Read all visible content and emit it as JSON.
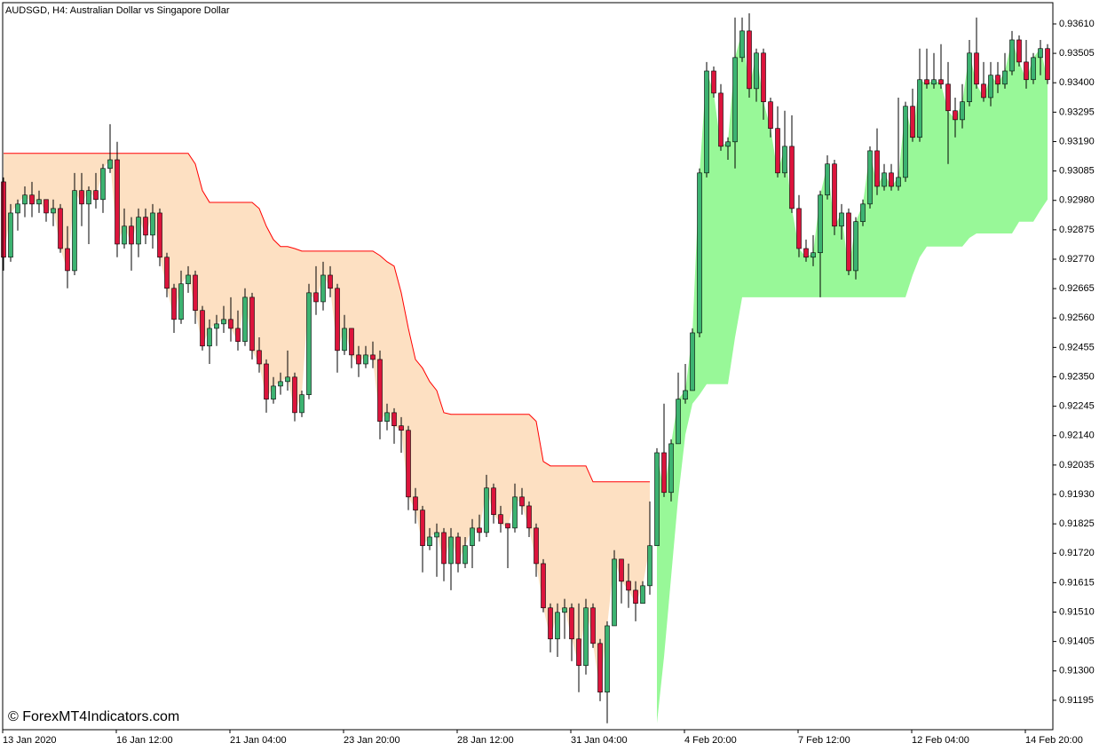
{
  "chart_data": {
    "type": "candlestick",
    "title": "AUDSGD, H4:  Australian Dollar vs Singapore Dollar",
    "watermark": "© ForexMT4Indicators.com",
    "up_color": "#3cb371",
    "down_color": "#dc143c",
    "ylim": [
      0.9109,
      0.93686
    ],
    "yticks": [
      {
        "value": 0.9361,
        "label": "0.93610"
      },
      0.93505,
      {
        "value": 0.934,
        "label": "0.93400"
      },
      0.93295,
      {
        "value": 0.9319,
        "label": "0.93190"
      },
      0.93085,
      {
        "value": 0.9298,
        "label": "0.92980"
      },
      0.92875,
      {
        "value": 0.9277,
        "label": "0.92770"
      },
      0.92665,
      {
        "value": 0.9256,
        "label": "0.92560"
      },
      0.92455,
      {
        "value": 0.9235,
        "label": "0.92350"
      },
      0.92245,
      {
        "value": 0.9214,
        "label": "0.92140"
      },
      0.92035,
      {
        "value": 0.9193,
        "label": "0.91930"
      },
      0.91825,
      {
        "value": 0.9172,
        "label": "0.91720"
      },
      0.91615,
      {
        "value": 0.9151,
        "label": "0.91510"
      },
      0.91405,
      {
        "value": 0.913,
        "label": "0.91300"
      },
      0.91195
    ],
    "categories": [
      "13 Jan 2020",
      null,
      null,
      null,
      null,
      null,
      null,
      null,
      null,
      null,
      null,
      null,
      null,
      null,
      null,
      null,
      "16 Jan 12:00",
      null,
      null,
      null,
      null,
      null,
      null,
      null,
      null,
      null,
      null,
      null,
      null,
      null,
      null,
      null,
      "21 Jan 04:00",
      null,
      null,
      null,
      null,
      null,
      null,
      null,
      null,
      null,
      null,
      null,
      null,
      null,
      null,
      null,
      "23 Jan 20:00",
      null,
      null,
      null,
      null,
      null,
      null,
      null,
      null,
      null,
      null,
      null,
      null,
      null,
      null,
      null,
      "28 Jan 12:00",
      null,
      null,
      null,
      null,
      null,
      null,
      null,
      null,
      null,
      null,
      null,
      null,
      null,
      null,
      null,
      "31 Jan 04:00",
      null,
      null,
      null,
      null,
      null,
      null,
      null,
      null,
      null,
      null,
      null,
      null,
      null,
      null,
      null,
      "4 Feb 20:00",
      null,
      null,
      null,
      null,
      null,
      null,
      null,
      null,
      null,
      null,
      null,
      null,
      null,
      null,
      null,
      "7 Feb 12:00",
      null,
      null,
      null,
      null,
      null,
      null,
      null,
      null,
      null,
      null,
      null,
      null,
      null,
      null,
      null,
      "12 Feb 04:00",
      null,
      null,
      null,
      null,
      null,
      null,
      null,
      null,
      null,
      null,
      null,
      null,
      null,
      null,
      null,
      "14 Feb 20:00",
      null,
      null,
      null
    ],
    "open": [
      0.93046,
      0.92777,
      0.92935,
      0.92967,
      0.92999,
      0.92967,
      0.92983,
      0.92935,
      0.92951,
      0.92808,
      0.92729,
      0.93015,
      0.92967,
      0.93015,
      0.92983,
      0.93094,
      0.93125,
      0.92824,
      0.92888,
      0.92824,
      0.9292,
      0.92856,
      0.92935,
      0.92777,
      0.92666,
      0.92555,
      0.92682,
      0.92713,
      0.92587,
      0.9246,
      0.92523,
      0.92539,
      0.92555,
      0.92523,
      0.92476,
      0.92634,
      0.92444,
      0.92396,
      0.9227,
      0.92317,
      0.92333,
      0.92349,
      0.92222,
      0.92286,
      0.9265,
      0.92618,
      0.92713,
      0.92666,
      0.92444,
      0.92523,
      0.92428,
      0.92396,
      0.92428,
      0.92412,
      0.92191,
      0.92222,
      0.92175,
      0.92159,
      0.91921,
      0.91874,
      0.91747,
      0.91778,
      0.91794,
      0.91683,
      0.91778,
      0.91683,
      0.91747,
      0.9181,
      0.91794,
      0.91953,
      0.91858,
      0.91826,
      0.9181,
      0.91921,
      0.91889,
      0.9181,
      0.91683,
      0.91525,
      0.91414,
      0.91509,
      0.91525,
      0.91414,
      0.91319,
      0.91525,
      0.91398,
      0.91224,
      0.91461,
      0.91699,
      0.9162,
      0.91588,
      0.91541,
      0.91604,
      0.91747,
      0.92079,
      0.91937,
      0.92111,
      0.9227,
      0.92301,
      0.92507,
      0.93078,
      0.93442,
      0.93363,
      0.93173,
      0.93189,
      0.9349,
      0.93585,
      0.93379,
      0.93506,
      0.93332,
      0.93237,
      0.93078,
      0.93173,
      0.92951,
      0.92808,
      0.92777,
      0.92793,
      0.92999,
      0.9311,
      0.92888,
      0.92935,
      0.92729,
      0.92904,
      0.92967,
      0.93157,
      0.9303,
      0.93078,
      0.9303,
      0.93062,
      0.93316,
      0.93205,
      0.93411,
      0.93395,
      0.93411,
      0.93395,
      0.933,
      0.93268,
      0.93332,
      0.93506,
      0.93395,
      0.93347,
      0.93427,
      0.93395,
      0.93442,
      0.93553,
      0.93474,
      0.93411,
      0.9349,
      0.93522
    ],
    "high": [
      0.93062,
      0.92967,
      0.92983,
      0.9303,
      0.93046,
      0.93015,
      0.92983,
      0.92983,
      0.92967,
      0.92888,
      0.93078,
      0.93078,
      0.9303,
      0.93078,
      0.9311,
      0.93252,
      0.93189,
      0.92951,
      0.9292,
      0.92951,
      0.92951,
      0.92967,
      0.92951,
      0.92793,
      0.92682,
      0.92729,
      0.92745,
      0.92729,
      0.92603,
      0.92555,
      0.92571,
      0.92603,
      0.92634,
      0.92587,
      0.92666,
      0.9265,
      0.92491,
      0.92412,
      0.92349,
      0.92365,
      0.92444,
      0.92365,
      0.92301,
      0.92682,
      0.92745,
      0.92761,
      0.92745,
      0.92682,
      0.92571,
      0.92523,
      0.9246,
      0.9246,
      0.92476,
      0.92444,
      0.92254,
      0.92238,
      0.92206,
      0.92175,
      0.91953,
      0.91889,
      0.9181,
      0.91826,
      0.9181,
      0.9181,
      0.91794,
      0.91778,
      0.91842,
      0.91858,
      0.92,
      0.91969,
      0.91889,
      0.91826,
      0.91969,
      0.91953,
      0.91905,
      0.91826,
      0.91699,
      0.91541,
      0.91541,
      0.91557,
      0.91541,
      0.91541,
      0.91557,
      0.91541,
      0.91414,
      0.91477,
      0.91731,
      0.91699,
      0.91683,
      0.9162,
      0.9162,
      0.91905,
      0.92095,
      0.92254,
      0.92127,
      0.92365,
      0.92396,
      0.92523,
      0.93094,
      0.93474,
      0.93458,
      0.93395,
      0.93205,
      0.93633,
      0.93633,
      0.93648,
      0.93522,
      0.93522,
      0.93347,
      0.93316,
      0.933,
      0.93284,
      0.92999,
      0.9284,
      0.92856,
      0.93015,
      0.93141,
      0.93125,
      0.92967,
      0.92951,
      0.9292,
      0.92983,
      0.93173,
      0.93237,
      0.9311,
      0.9311,
      0.93347,
      0.93332,
      0.93379,
      0.93522,
      0.93522,
      0.93506,
      0.93538,
      0.93474,
      0.93347,
      0.93395,
      0.93553,
      0.93633,
      0.93474,
      0.93474,
      0.93474,
      0.93506,
      0.93585,
      0.93569,
      0.93553,
      0.93506,
      0.93553,
      0.93538
    ],
    "low": [
      0.92729,
      0.92761,
      0.92872,
      0.9292,
      0.9292,
      0.92935,
      0.92904,
      0.92888,
      0.92793,
      0.92666,
      0.92713,
      0.92888,
      0.92824,
      0.92951,
      0.92935,
      0.93078,
      0.92777,
      0.92808,
      0.92729,
      0.92777,
      0.92824,
      0.92808,
      0.92745,
      0.92634,
      0.92507,
      0.92539,
      0.9265,
      0.92539,
      0.92444,
      0.92396,
      0.9246,
      0.92507,
      0.92476,
      0.92444,
      0.9246,
      0.92412,
      0.92365,
      0.92222,
      0.92254,
      0.92286,
      0.92301,
      0.92191,
      0.92206,
      0.9227,
      0.92571,
      0.92587,
      0.92634,
      0.92365,
      0.92428,
      0.92381,
      0.92349,
      0.92381,
      0.92381,
      0.92127,
      0.92159,
      0.92111,
      0.92079,
      0.91874,
      0.91826,
      0.91652,
      0.91731,
      0.91636,
      0.9162,
      0.91588,
      0.91652,
      0.91667,
      0.91667,
      0.91762,
      0.91778,
      0.91826,
      0.91794,
      0.91667,
      0.91794,
      0.91858,
      0.91778,
      0.91636,
      0.91509,
      0.91366,
      0.9135,
      0.91414,
      0.91335,
      0.91224,
      0.91287,
      0.91382,
      0.91192,
      0.91113,
      0.91461,
      0.91541,
      0.91525,
      0.91477,
      0.91557,
      0.91572,
      0.91747,
      0.91921,
      0.91905,
      0.92111,
      0.92254,
      0.92301,
      0.92491,
      0.93062,
      0.93347,
      0.93157,
      0.93125,
      0.93094,
      0.93474,
      0.93347,
      0.93332,
      0.93268,
      0.93205,
      0.93062,
      0.93062,
      0.92935,
      0.92777,
      0.92761,
      0.92745,
      0.92634,
      0.92983,
      0.92856,
      0.9284,
      0.92713,
      0.92698,
      0.92888,
      0.92951,
      0.92999,
      0.93015,
      0.93015,
      0.93015,
      0.93046,
      0.93189,
      0.93189,
      0.93379,
      0.93379,
      0.93379,
      0.9311,
      0.93205,
      0.93237,
      0.93316,
      0.93379,
      0.93332,
      0.93316,
      0.93363,
      0.93379,
      0.93427,
      0.93458,
      0.93379,
      0.93395,
      0.93427,
      0.93395
    ],
    "close": [
      0.92777,
      0.92935,
      0.92967,
      0.92999,
      0.92967,
      0.92983,
      0.92935,
      0.92951,
      0.92808,
      0.92729,
      0.93015,
      0.92967,
      0.93015,
      0.92983,
      0.93094,
      0.93125,
      0.92824,
      0.92888,
      0.92824,
      0.9292,
      0.92856,
      0.92935,
      0.92777,
      0.92666,
      0.92555,
      0.92682,
      0.92713,
      0.92587,
      0.9246,
      0.92523,
      0.92539,
      0.92555,
      0.92523,
      0.92476,
      0.92634,
      0.92444,
      0.92396,
      0.9227,
      0.92317,
      0.92333,
      0.92349,
      0.92222,
      0.92286,
      0.9265,
      0.92618,
      0.92713,
      0.92666,
      0.92444,
      0.92523,
      0.92428,
      0.92396,
      0.92428,
      0.92412,
      0.92191,
      0.92222,
      0.92175,
      0.92159,
      0.91921,
      0.91874,
      0.91747,
      0.91778,
      0.91794,
      0.91683,
      0.91778,
      0.91683,
      0.91747,
      0.9181,
      0.91794,
      0.91953,
      0.91858,
      0.91826,
      0.9181,
      0.91921,
      0.91889,
      0.9181,
      0.91683,
      0.91525,
      0.91414,
      0.91509,
      0.91525,
      0.91414,
      0.91319,
      0.91525,
      0.91398,
      0.91224,
      0.91461,
      0.91699,
      0.9162,
      0.91588,
      0.91541,
      0.91604,
      0.91747,
      0.92079,
      0.91937,
      0.92111,
      0.9227,
      0.92301,
      0.92507,
      0.93078,
      0.93442,
      0.93363,
      0.93173,
      0.93189,
      0.9349,
      0.93585,
      0.93379,
      0.93506,
      0.93332,
      0.93237,
      0.93078,
      0.93173,
      0.92951,
      0.92808,
      0.92777,
      0.92793,
      0.92999,
      0.9311,
      0.92888,
      0.92935,
      0.92729,
      0.92904,
      0.92967,
      0.93157,
      0.9303,
      0.93078,
      0.9303,
      0.93062,
      0.93316,
      0.93205,
      0.93411,
      0.93395,
      0.93411,
      0.93395,
      0.933,
      0.93268,
      0.93332,
      0.93506,
      0.93395,
      0.93347,
      0.93427,
      0.93395,
      0.93442,
      0.93553,
      0.93474,
      0.93411,
      0.9349,
      0.93522,
      0.93411
    ],
    "trail_down": {
      "line_color": "#ff0000",
      "fill": "#fde0c2",
      "values": [
        0.93148,
        0.93148,
        0.93148,
        0.93148,
        0.93148,
        0.93148,
        0.93148,
        0.93148,
        0.93148,
        0.93148,
        0.93148,
        0.93148,
        0.93148,
        0.93148,
        0.93148,
        0.93148,
        0.93148,
        0.93148,
        0.93148,
        0.93148,
        0.93148,
        0.93148,
        0.93148,
        0.93148,
        0.93148,
        0.93148,
        0.93148,
        0.9311,
        0.93015,
        0.92973,
        0.92973,
        0.92973,
        0.92973,
        0.92973,
        0.92973,
        0.92973,
        0.92951,
        0.92888,
        0.9284,
        0.92815,
        0.92815,
        0.92808,
        0.92799,
        0.92799,
        0.92799,
        0.92799,
        0.92799,
        0.92799,
        0.92799,
        0.92799,
        0.92799,
        0.92799,
        0.92799,
        0.92783,
        0.92761,
        0.92745,
        0.9265,
        0.92523,
        0.92412,
        0.92381,
        0.92333,
        0.92301,
        0.92222,
        0.92216,
        0.92216,
        0.92216,
        0.92216,
        0.92216,
        0.92216,
        0.92216,
        0.92216,
        0.92216,
        0.92216,
        0.92216,
        0.92216,
        0.92191,
        0.92048,
        0.92032,
        0.92032,
        0.92032,
        0.92032,
        0.92032,
        0.92032,
        0.91975,
        0.91975,
        0.91975,
        0.91975,
        0.91975,
        0.91975,
        0.91975,
        0.91975,
        0.91975,
        null,
        null,
        null,
        null,
        null,
        null,
        null,
        null,
        null,
        null,
        null,
        null,
        null,
        null,
        null,
        null,
        null,
        null,
        null,
        null,
        null,
        null,
        null,
        null,
        null,
        null,
        null,
        null,
        null,
        null,
        null,
        null,
        null,
        null,
        null,
        null,
        null,
        null,
        null,
        null,
        null,
        null,
        null,
        null,
        null,
        null,
        null,
        null,
        null,
        null,
        null,
        null,
        null,
        null,
        null,
        null
      ]
    },
    "trail_up": {
      "fill": "#98f898",
      "values": [
        null,
        null,
        null,
        null,
        null,
        null,
        null,
        null,
        null,
        null,
        null,
        null,
        null,
        null,
        null,
        null,
        null,
        null,
        null,
        null,
        null,
        null,
        null,
        null,
        null,
        null,
        null,
        null,
        null,
        null,
        null,
        null,
        null,
        null,
        null,
        null,
        null,
        null,
        null,
        null,
        null,
        null,
        null,
        null,
        null,
        null,
        null,
        null,
        null,
        null,
        null,
        null,
        null,
        null,
        null,
        null,
        null,
        null,
        null,
        null,
        null,
        null,
        null,
        null,
        null,
        null,
        null,
        null,
        null,
        null,
        null,
        null,
        null,
        null,
        null,
        null,
        null,
        null,
        null,
        null,
        null,
        null,
        null,
        null,
        null,
        null,
        null,
        null,
        null,
        null,
        null,
        null,
        0.91113,
        0.9135,
        0.91636,
        0.91921,
        0.92143,
        0.92254,
        0.92286,
        0.92324,
        0.92324,
        0.92324,
        0.92324,
        0.92491,
        0.92634,
        0.92634,
        0.92634,
        0.92634,
        0.92634,
        0.92634,
        0.92634,
        0.92634,
        0.92634,
        0.92634,
        0.92634,
        0.92634,
        0.92634,
        0.92634,
        0.92634,
        0.92634,
        0.92634,
        0.92634,
        0.92634,
        0.92634,
        0.92634,
        0.92634,
        0.92634,
        0.92634,
        0.92713,
        0.92777,
        0.92815,
        0.92815,
        0.92815,
        0.92815,
        0.92815,
        0.92815,
        0.92846,
        0.92862,
        0.92862,
        0.92862,
        0.92862,
        0.92862,
        0.92862,
        0.92904,
        0.92904,
        0.92904,
        0.92945,
        0.92983
      ]
    }
  }
}
